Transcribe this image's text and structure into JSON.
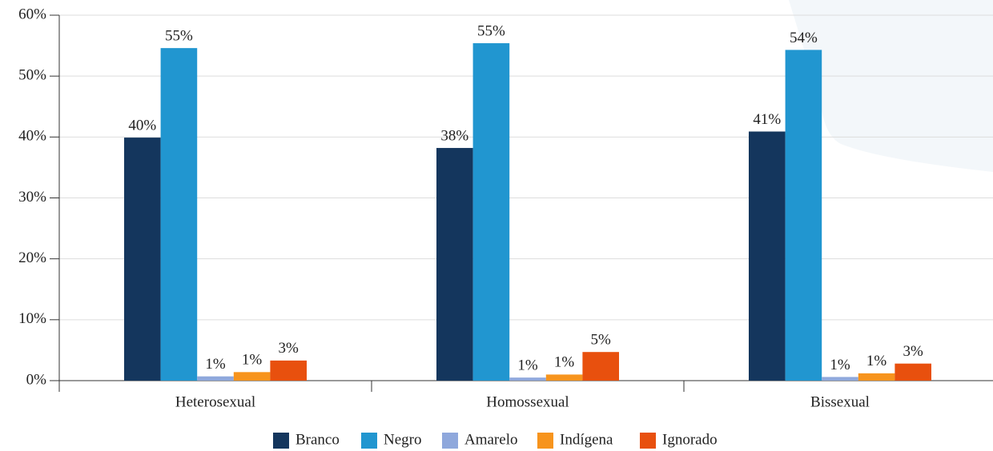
{
  "chart_data": {
    "type": "bar",
    "categories": [
      "Heterosexual",
      "Homossexual",
      "Bissexual"
    ],
    "series": [
      {
        "name": "Branco",
        "color": "#14365d",
        "values": [
          39.9,
          38.2,
          40.9
        ],
        "value_labels": [
          "40%",
          "38%",
          "41%"
        ]
      },
      {
        "name": "Negro",
        "color": "#2196d0",
        "values": [
          54.6,
          55.4,
          54.3
        ],
        "value_labels": [
          "55%",
          "55%",
          "54%"
        ]
      },
      {
        "name": "Amarelo",
        "color": "#8fa8dc",
        "values": [
          0.7,
          0.5,
          0.6
        ],
        "value_labels": [
          "1%",
          "1%",
          "1%"
        ]
      },
      {
        "name": "Indígena",
        "color": "#f7941d",
        "values": [
          1.4,
          1.0,
          1.2
        ],
        "value_labels": [
          "1%",
          "1%",
          "1%"
        ]
      },
      {
        "name": "Ignorado",
        "color": "#e8500e",
        "values": [
          3.3,
          4.7,
          2.8
        ],
        "value_labels": [
          "3%",
          "5%",
          "3%"
        ]
      }
    ],
    "ylim": [
      0,
      60
    ],
    "yticks": [
      {
        "value": 0,
        "label": "0%"
      },
      {
        "value": 10,
        "label": "10%"
      },
      {
        "value": 20,
        "label": "20%"
      },
      {
        "value": 30,
        "label": "30%"
      },
      {
        "value": 40,
        "label": "40%"
      },
      {
        "value": 50,
        "label": "50%"
      },
      {
        "value": 60,
        "label": "60%"
      }
    ],
    "grid": true,
    "legend": "bottom"
  }
}
